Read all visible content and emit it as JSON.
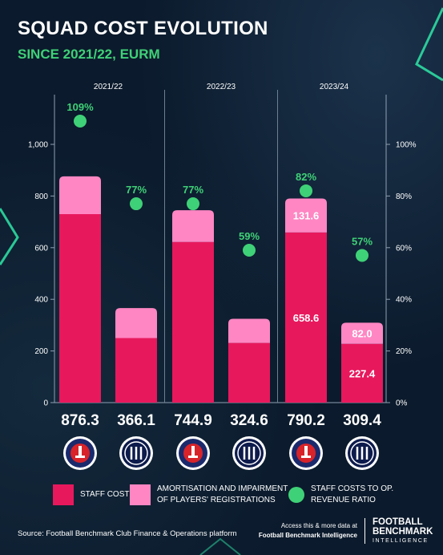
{
  "header": {
    "title": "SQUAD COST EVOLUTION",
    "subtitle": "SINCE 2021/22, EURM"
  },
  "colors": {
    "staff_costs": "#e8185d",
    "amortisation": "#ff86c3",
    "ratio": "#3fd177",
    "background": "#0b1a2c"
  },
  "chart_data": {
    "type": "bar",
    "stacked": true,
    "seasons": [
      "2021/22",
      "2022/23",
      "2023/24"
    ],
    "clubs": [
      "PSG",
      "Inter",
      "PSG",
      "Inter",
      "PSG",
      "Inter"
    ],
    "club_icons": [
      "psg-crest-icon",
      "inter-crest-icon",
      "psg-crest-icon",
      "inter-crest-icon",
      "psg-crest-icon",
      "inter-crest-icon"
    ],
    "totals": [
      "876.3",
      "366.1",
      "744.9",
      "324.6",
      "790.2",
      "309.4"
    ],
    "series": [
      {
        "name": "STAFF COSTS",
        "values": [
          730,
          250,
          622,
          231,
          658.6,
          227.4
        ],
        "labels": [
          "",
          "",
          "",
          "",
          "658.6",
          "227.4"
        ]
      },
      {
        "name": "AMORTISATION AND IMPAIRMENT OF PLAYERS' REGISTRATIONS",
        "values": [
          146.3,
          116.1,
          122.9,
          93.6,
          131.6,
          82.0
        ],
        "labels": [
          "",
          "",
          "",
          "",
          "131.6",
          "82.0"
        ]
      }
    ],
    "ratio": {
      "name": "STAFF COSTS TO OP. REVENUE RATIO",
      "values": [
        109,
        77,
        77,
        59,
        82,
        57
      ],
      "labels": [
        "109%",
        "77%",
        "77%",
        "59%",
        "82%",
        "57%"
      ]
    },
    "y_left": {
      "lim": [
        0,
        1000
      ],
      "ticks": [
        0,
        200,
        400,
        600,
        800,
        1000
      ],
      "tick_labels": [
        "0",
        "200",
        "400",
        "600",
        "800",
        "1,000"
      ]
    },
    "y_right": {
      "lim": [
        0,
        100
      ],
      "ticks": [
        0,
        20,
        40,
        60,
        80,
        100
      ],
      "tick_labels": [
        "0%",
        "20%",
        "40%",
        "60%",
        "80%",
        "100%"
      ]
    }
  },
  "legend": {
    "staff_costs": "STAFF COSTS",
    "amortisation": "AMORTISATION AND IMPAIRMENT\nOF PLAYERS' REGISTRATIONS",
    "ratio": "STAFF COSTS TO OP.\nREVENUE RATIO"
  },
  "footer": {
    "source": "Source: Football Benchmark Club Finance & Operations platform",
    "access_line1": "Access this & more data at",
    "access_line2": "Football Benchmark Intelligence",
    "brand_line1": "FOOTBALL",
    "brand_line2": "BENCHMARK",
    "brand_line3": "INTELLIGENCE"
  }
}
